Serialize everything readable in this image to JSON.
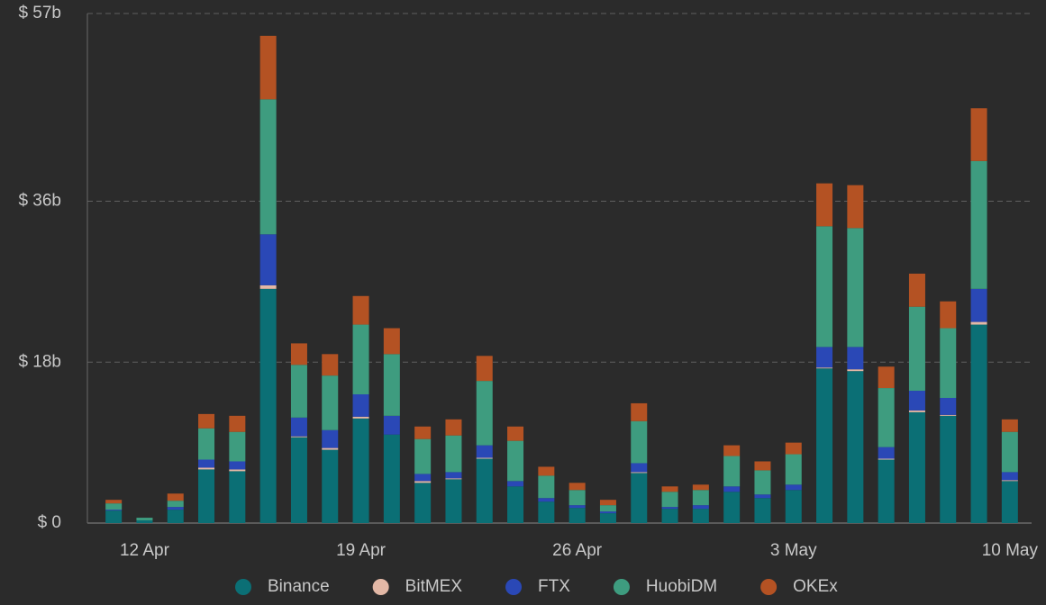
{
  "chart_data": {
    "type": "stacked_bar",
    "categories": [
      null,
      "12 Apr",
      null,
      null,
      null,
      null,
      null,
      null,
      "19 Apr",
      null,
      null,
      null,
      null,
      null,
      null,
      "26 Apr",
      null,
      null,
      null,
      null,
      null,
      null,
      "3 May",
      null,
      null,
      null,
      null,
      null,
      null,
      "10 May"
    ],
    "series": [
      {
        "name": "Binance",
        "color": "#0b6f75",
        "values": [
          1.4,
          0.3,
          1.5,
          6.0,
          5.8,
          26.2,
          9.6,
          8.2,
          11.7,
          9.9,
          4.5,
          4.9,
          7.2,
          4.1,
          2.4,
          1.7,
          1.1,
          5.6,
          1.6,
          1.6,
          3.5,
          2.8,
          3.7,
          17.3,
          17.0,
          7.1,
          12.4,
          12.0,
          22.2,
          4.7
        ]
      },
      {
        "name": "BitMEX",
        "color": "#e3b8a6",
        "values": [
          0,
          0,
          0,
          0.2,
          0.2,
          0.4,
          0.1,
          0.2,
          0.2,
          0,
          0.2,
          0.1,
          0.1,
          0,
          0,
          0,
          0,
          0.1,
          0,
          0,
          0,
          0,
          0,
          0.1,
          0.2,
          0.1,
          0.2,
          0.1,
          0.3,
          0.1
        ]
      },
      {
        "name": "FTX",
        "color": "#2a48b6",
        "values": [
          0.1,
          0,
          0.3,
          0.9,
          0.9,
          5.7,
          2.1,
          2.0,
          2.5,
          2.1,
          0.8,
          0.7,
          1.4,
          0.6,
          0.4,
          0.3,
          0.2,
          1.0,
          0.2,
          0.4,
          0.6,
          0.4,
          0.6,
          2.3,
          2.5,
          1.3,
          2.2,
          1.9,
          3.7,
          0.9
        ]
      },
      {
        "name": "HuobiDM",
        "color": "#3e9c7f",
        "values": [
          0.7,
          0.3,
          0.7,
          3.5,
          3.3,
          15.1,
          5.9,
          6.1,
          7.8,
          6.9,
          3.9,
          4.1,
          7.2,
          4.5,
          2.5,
          1.7,
          0.7,
          4.7,
          1.7,
          1.7,
          3.4,
          2.7,
          3.4,
          13.5,
          13.3,
          6.6,
          9.4,
          7.8,
          14.3,
          4.5
        ]
      },
      {
        "name": "OKEx",
        "color": "#b45223",
        "values": [
          0.4,
          0,
          0.8,
          1.6,
          1.8,
          7.1,
          2.4,
          2.4,
          3.2,
          2.9,
          1.4,
          1.8,
          2.8,
          1.6,
          1.0,
          0.8,
          0.6,
          2.0,
          0.6,
          0.6,
          1.2,
          1.0,
          1.3,
          4.8,
          4.8,
          2.4,
          3.7,
          3.0,
          5.9,
          1.4
        ]
      }
    ],
    "ylim": [
      0,
      57
    ],
    "yticks": [
      {
        "value": 0,
        "label": "$ 0"
      },
      {
        "value": 18,
        "label": "$ 18b"
      },
      {
        "value": 36,
        "label": "$ 36b"
      },
      {
        "value": 57,
        "label": "$ 57b"
      }
    ],
    "grid": true,
    "legend": "bottom"
  }
}
